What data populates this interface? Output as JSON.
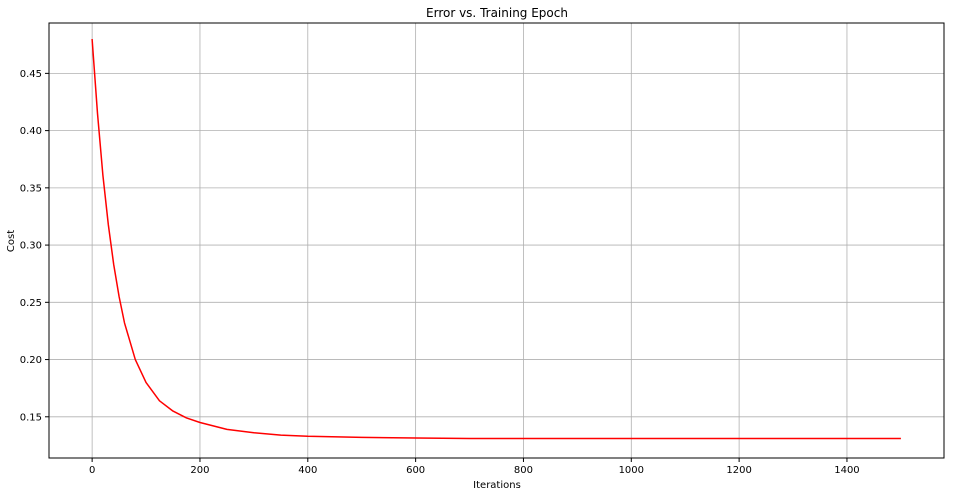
{
  "chart_data": {
    "type": "line",
    "title": "Error vs. Training Epoch",
    "xlabel": "Iterations",
    "ylabel": "Cost",
    "xlim": [
      -80,
      1580
    ],
    "ylim": [
      0.114,
      0.494
    ],
    "xticks": [
      0,
      200,
      400,
      600,
      800,
      1000,
      1200,
      1400
    ],
    "yticks": [
      0.15,
      0.2,
      0.25,
      0.3,
      0.35,
      0.4,
      0.45
    ],
    "xtick_labels": [
      "0",
      "200",
      "400",
      "600",
      "800",
      "1000",
      "1200",
      "1400"
    ],
    "ytick_labels": [
      "0.15",
      "0.20",
      "0.25",
      "0.30",
      "0.35",
      "0.40",
      "0.45"
    ],
    "grid": true,
    "series": [
      {
        "color": "#ff0000",
        "x": [
          0,
          10,
          20,
          30,
          40,
          50,
          60,
          80,
          100,
          125,
          150,
          175,
          200,
          250,
          300,
          350,
          400,
          500,
          600,
          700,
          800,
          1000,
          1200,
          1400,
          1500
        ],
        "y": [
          0.48,
          0.415,
          0.361,
          0.318,
          0.283,
          0.255,
          0.232,
          0.2,
          0.18,
          0.164,
          0.155,
          0.149,
          0.145,
          0.139,
          0.136,
          0.134,
          0.133,
          0.132,
          0.1315,
          0.131,
          0.131,
          0.131,
          0.131,
          0.131,
          0.131
        ]
      }
    ]
  }
}
